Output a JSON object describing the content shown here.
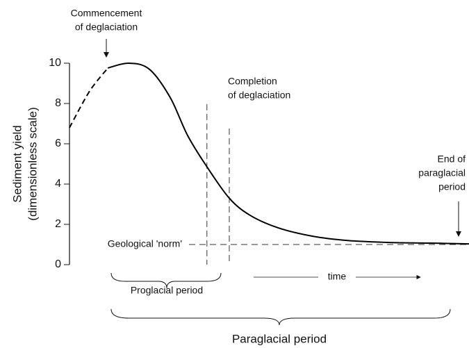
{
  "chart_data": {
    "type": "line",
    "ylabel": [
      "Sediment yield",
      "(dimensionless scale)"
    ],
    "x": [
      0,
      5,
      9.6,
      14.8,
      20,
      25.2,
      29.6,
      34.4,
      40,
      45.2,
      52.2,
      60.9,
      69.6,
      80,
      90.4,
      100
    ],
    "series": [
      {
        "color": "#000000",
        "dashed": true,
        "values": [
          6.8,
          8.6,
          9.76,
          null,
          null,
          null,
          null,
          null,
          null,
          null,
          null,
          null,
          null,
          null,
          null,
          null
        ]
      },
      {
        "color": "#000000",
        "dashed": false,
        "values": [
          null,
          null,
          9.76,
          10,
          9.7,
          8.3,
          6.4,
          4.86,
          3.3,
          2.45,
          1.83,
          1.41,
          1.2,
          1.1,
          1.07,
          1.03
        ]
      }
    ],
    "xlim": [
      0,
      100
    ],
    "ylim": [
      0,
      10
    ],
    "yticks": [
      0,
      2,
      4,
      6,
      8,
      10
    ],
    "norm_line": {
      "value": 1,
      "label": "Geological 'norm'"
    },
    "vlines": [
      {
        "x": 34.4,
        "top": 7.97
      },
      {
        "x": 40,
        "top": 6.76
      }
    ],
    "annotations": [
      {
        "lines": [
          "Commencement",
          "of deglaciation"
        ]
      },
      {
        "lines": [
          "Completion",
          "of deglaciation"
        ]
      },
      {
        "lines": [
          "End of",
          "paraglacial",
          "period"
        ]
      },
      {
        "lines": [
          "Proglacial period"
        ]
      },
      {
        "lines": [
          "time"
        ]
      },
      {
        "lines": [
          "Paraglacial period"
        ]
      }
    ]
  }
}
